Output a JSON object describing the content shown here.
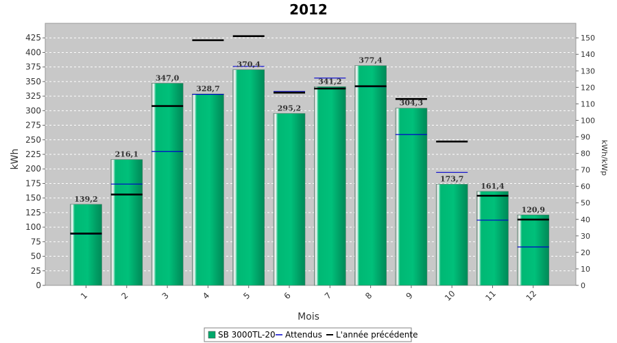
{
  "chart_data": {
    "type": "bar",
    "title": "2012",
    "xlabel": "Mois",
    "ylabel": "kWh",
    "y2label": "kWh/kWp",
    "categories": [
      "1",
      "2",
      "3",
      "4",
      "5",
      "6",
      "7",
      "8",
      "9",
      "10",
      "11",
      "12"
    ],
    "ylim": [
      0,
      450
    ],
    "yticks": [
      0,
      25,
      50,
      75,
      100,
      125,
      150,
      175,
      200,
      225,
      250,
      275,
      300,
      325,
      350,
      375,
      400,
      425
    ],
    "y2lim": [
      0,
      158.8
    ],
    "y2ticks": [
      0,
      10,
      20,
      30,
      40,
      50,
      60,
      70,
      80,
      90,
      100,
      110,
      120,
      130,
      140,
      150
    ],
    "grid": true,
    "legend_position": "bottom",
    "series": [
      {
        "name": "SB 3000TL-20",
        "kind": "bar",
        "color": "#00a86b",
        "values": [
          139.2,
          216.1,
          347.0,
          328.7,
          370.4,
          295.2,
          341.2,
          377.4,
          304.3,
          173.7,
          161.4,
          120.9
        ],
        "labels": [
          "139,2",
          "216,1",
          "347,0",
          "328,7",
          "370,4",
          "295,2",
          "341,2",
          "377,4",
          "304,3",
          "173,7",
          "161,4",
          "120,9"
        ]
      },
      {
        "name": "Attendus",
        "kind": "marker",
        "color": "#0000cc",
        "values": [
          88,
          174,
          230,
          328,
          376,
          333,
          356,
          341,
          259,
          194,
          112,
          66
        ]
      },
      {
        "name": "L'année précédente",
        "kind": "marker",
        "color": "#000000",
        "values": [
          89,
          156,
          308,
          421,
          428,
          331,
          338,
          342,
          320,
          247,
          154,
          113
        ]
      }
    ]
  }
}
